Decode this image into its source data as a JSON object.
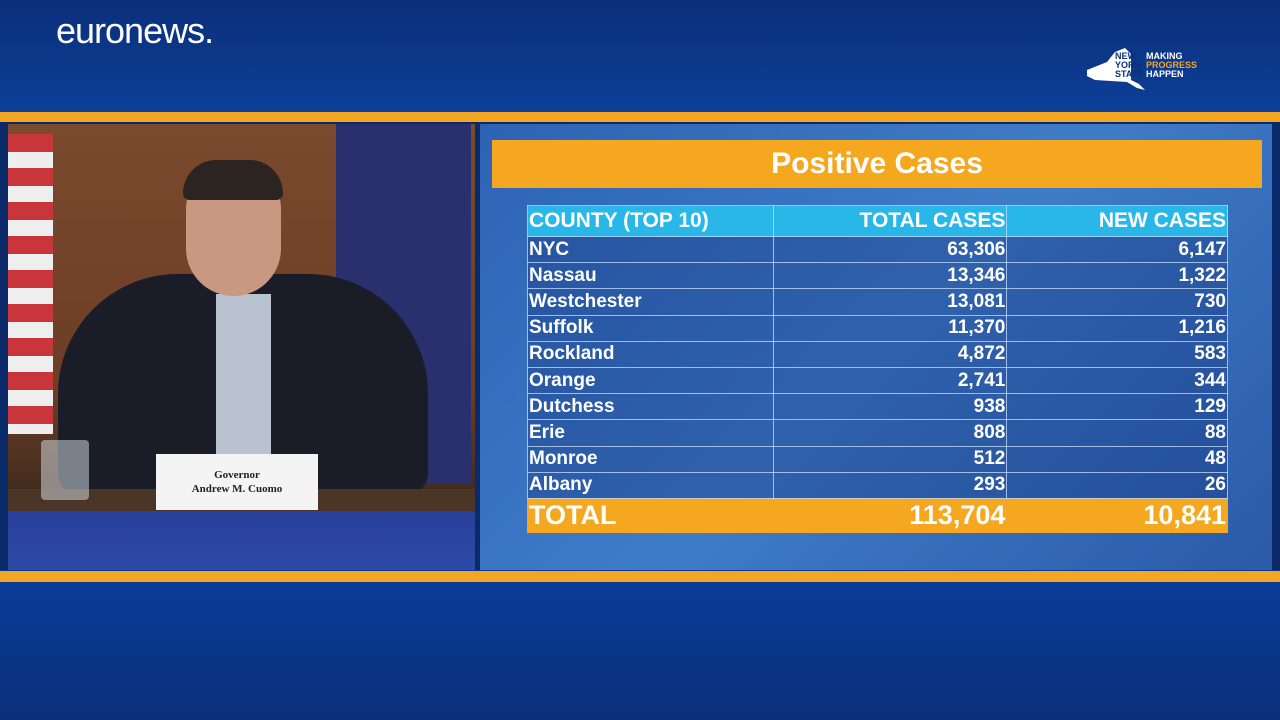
{
  "branding": {
    "logo": "euronews.",
    "sponsor_logo": {
      "lines_left": [
        "NEW",
        "YORK",
        "STATE"
      ],
      "lines_right": [
        "MAKING",
        "PROGRESS",
        "HAPPEN"
      ]
    }
  },
  "colors": {
    "accent_orange": "#f4a71f",
    "header_cyan": "#29b7ea",
    "band_blue": "#0b2f7a"
  },
  "video": {
    "placard": {
      "line1": "Governor",
      "line2": "Andrew M. Cuomo"
    }
  },
  "slide": {
    "title": "Positive Cases",
    "columns": [
      "COUNTY (TOP 10)",
      "TOTAL CASES",
      "NEW CASES"
    ],
    "rows": [
      [
        "NYC",
        "63,306",
        "6,147"
      ],
      [
        "Nassau",
        "13,346",
        "1,322"
      ],
      [
        "Westchester",
        "13,081",
        "730"
      ],
      [
        "Suffolk",
        "11,370",
        "1,216"
      ],
      [
        "Rockland",
        "4,872",
        "583"
      ],
      [
        "Orange",
        "2,741",
        "344"
      ],
      [
        "Dutchess",
        "938",
        "129"
      ],
      [
        "Erie",
        "808",
        "88"
      ],
      [
        "Monroe",
        "512",
        "48"
      ],
      [
        "Albany",
        "293",
        "26"
      ]
    ],
    "total": [
      "TOTAL",
      "113,704",
      "10,841"
    ]
  }
}
